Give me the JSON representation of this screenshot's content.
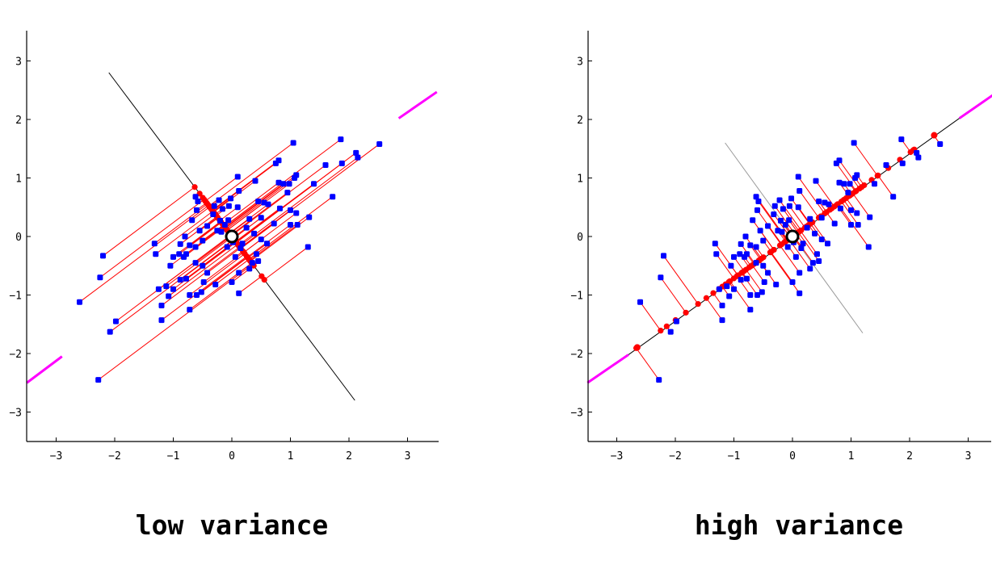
{
  "chart_data": [
    {
      "type": "scatter",
      "caption": "low variance",
      "xlim": [
        -3.5,
        3.5
      ],
      "ylim": [
        -3.5,
        3.5
      ],
      "xticks": [
        "−3",
        "−2",
        "−1",
        "0",
        "1",
        "2",
        "3"
      ],
      "yticks": [
        "−3",
        "−2",
        "−1",
        "0",
        "1",
        "2",
        "3"
      ],
      "grid": false,
      "projection_axis": {
        "from": [
          -2.1,
          2.8
        ],
        "to": [
          2.1,
          -2.8
        ]
      },
      "principal_axis_segments": [
        [
          [
            -3.5,
            -2.5
          ],
          [
            -2.9,
            -2.05
          ]
        ],
        [
          [
            2.85,
            2.02
          ],
          [
            3.5,
            2.47
          ]
        ]
      ]
    },
    {
      "type": "scatter",
      "caption": "high variance",
      "xlim": [
        -3.5,
        3.5
      ],
      "ylim": [
        -3.5,
        3.5
      ],
      "xticks": [
        "−3",
        "−2",
        "−1",
        "0",
        "1",
        "2",
        "3"
      ],
      "yticks": [
        "−3",
        "−2",
        "−1",
        "0",
        "1",
        "2",
        "3"
      ],
      "grid": false,
      "projection_axis": {
        "from": [
          -2.8,
          -2.02
        ],
        "to": [
          2.85,
          2.02
        ]
      },
      "orthogonal_axis": {
        "from": [
          -1.15,
          1.6
        ],
        "to": [
          1.2,
          -1.65
        ]
      },
      "principal_axis_segments": [
        [
          [
            -3.5,
            -2.5
          ],
          [
            -2.8,
            -2.02
          ]
        ],
        [
          [
            2.85,
            2.02
          ],
          [
            3.5,
            2.47
          ]
        ]
      ]
    }
  ],
  "points": [
    [
      2.52,
      1.58
    ],
    [
      2.12,
      1.43
    ],
    [
      1.86,
      1.66
    ],
    [
      1.88,
      1.25
    ],
    [
      2.15,
      1.35
    ],
    [
      1.72,
      0.68
    ],
    [
      1.6,
      1.22
    ],
    [
      1.4,
      0.9
    ],
    [
      1.32,
      0.33
    ],
    [
      1.3,
      -0.18
    ],
    [
      1.05,
      1.6
    ],
    [
      0.8,
      1.3
    ],
    [
      0.75,
      1.25
    ],
    [
      1.1,
      1.05
    ],
    [
      1.07,
      1.0
    ],
    [
      0.98,
      0.9
    ],
    [
      0.95,
      0.75
    ],
    [
      1.0,
      0.45
    ],
    [
      1.1,
      0.4
    ],
    [
      1.0,
      0.2
    ],
    [
      1.12,
      0.2
    ],
    [
      0.82,
      0.48
    ],
    [
      0.62,
      0.55
    ],
    [
      0.55,
      0.58
    ],
    [
      0.5,
      0.32
    ],
    [
      0.72,
      0.22
    ],
    [
      0.88,
      0.9
    ],
    [
      0.8,
      0.92
    ],
    [
      0.4,
      0.95
    ],
    [
      0.45,
      0.6
    ],
    [
      0.3,
      0.3
    ],
    [
      0.25,
      0.15
    ],
    [
      0.38,
      0.05
    ],
    [
      0.5,
      -0.05
    ],
    [
      0.6,
      -0.12
    ],
    [
      0.42,
      -0.3
    ],
    [
      0.45,
      -0.42
    ],
    [
      0.3,
      -0.55
    ],
    [
      0.12,
      -0.62
    ],
    [
      0.06,
      -0.35
    ],
    [
      0.15,
      -0.2
    ],
    [
      0.02,
      -0.1
    ],
    [
      -0.08,
      -0.18
    ],
    [
      -0.18,
      0.08
    ],
    [
      -0.12,
      0.2
    ],
    [
      -0.06,
      0.28
    ],
    [
      0.1,
      0.5
    ],
    [
      0.12,
      0.78
    ],
    [
      0.1,
      1.02
    ],
    [
      -0.02,
      0.65
    ],
    [
      -0.05,
      0.52
    ],
    [
      -0.16,
      0.47
    ],
    [
      -0.22,
      0.62
    ],
    [
      -0.32,
      0.38
    ],
    [
      -0.2,
      0.27
    ],
    [
      -0.42,
      0.18
    ],
    [
      -0.55,
      0.1
    ],
    [
      -0.5,
      -0.07
    ],
    [
      -0.62,
      -0.18
    ],
    [
      -0.72,
      -0.15
    ],
    [
      -0.78,
      -0.3
    ],
    [
      -0.9,
      -0.3
    ],
    [
      -0.82,
      -0.35
    ],
    [
      -0.62,
      -0.45
    ],
    [
      -0.5,
      -0.5
    ],
    [
      -0.42,
      -0.62
    ],
    [
      -0.48,
      -0.78
    ],
    [
      -0.52,
      -0.95
    ],
    [
      -0.6,
      -1.0
    ],
    [
      -0.72,
      -1.0
    ],
    [
      -0.72,
      -1.25
    ],
    [
      -0.78,
      -0.72
    ],
    [
      -0.88,
      -0.74
    ],
    [
      -1.0,
      -0.9
    ],
    [
      -1.08,
      -1.02
    ],
    [
      -1.12,
      -0.85
    ],
    [
      -1.25,
      -0.9
    ],
    [
      -1.2,
      -1.18
    ],
    [
      -1.2,
      -1.43
    ],
    [
      -1.3,
      -0.3
    ],
    [
      -1.32,
      -0.12
    ],
    [
      -1.05,
      -0.5
    ],
    [
      -1.0,
      -0.35
    ],
    [
      -0.88,
      -0.13
    ],
    [
      -0.8,
      0.0
    ],
    [
      -0.68,
      0.28
    ],
    [
      -0.6,
      0.45
    ],
    [
      -0.58,
      0.6
    ],
    [
      -0.62,
      0.68
    ],
    [
      -0.3,
      0.52
    ],
    [
      -2.2,
      -0.33
    ],
    [
      -2.25,
      -0.7
    ],
    [
      -2.6,
      -1.12
    ],
    [
      -1.98,
      -1.45
    ],
    [
      -2.08,
      -1.63
    ],
    [
      -2.28,
      -2.45
    ],
    [
      -0.28,
      -0.82
    ],
    [
      0.0,
      -0.78
    ],
    [
      0.12,
      -0.97
    ],
    [
      0.35,
      -0.45
    ],
    [
      0.18,
      -0.12
    ],
    [
      -0.25,
      0.1
    ]
  ],
  "high_variance_projection_ends": [
    -2.65,
    2.42
  ]
}
